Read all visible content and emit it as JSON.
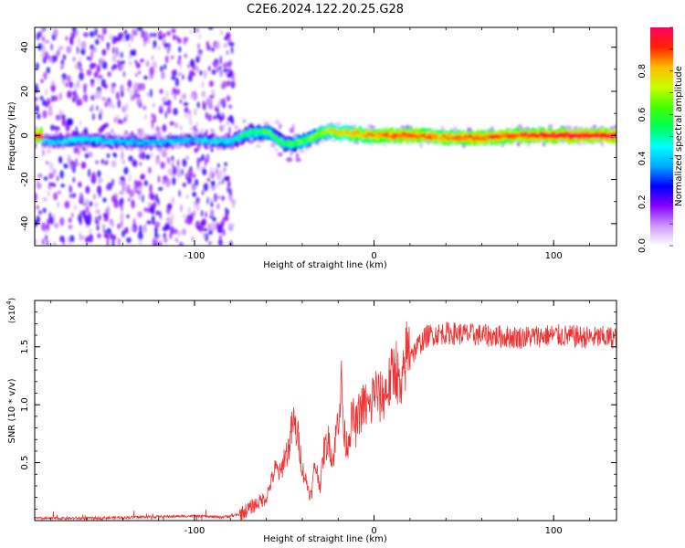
{
  "title": "C2E6.2024.122.20.25.G28",
  "chart_data": [
    {
      "type": "heatmap",
      "xlabel": "Height of straight line (km)",
      "ylabel": "Frequency (Hz)",
      "xlim": [
        -189,
        135
      ],
      "ylim": [
        -50,
        49
      ],
      "x_ticks": [
        -100,
        0,
        100
      ],
      "y_ticks": [
        -40,
        -20,
        0,
        20,
        40
      ],
      "colorbar": {
        "label": "Normalized spectral amplitude",
        "range": [
          0,
          1
        ],
        "ticks": [
          0.0,
          0.2,
          0.4,
          0.6,
          0.8
        ],
        "colors": [
          "#ffffff",
          "#cc99ff",
          "#8800ff",
          "#0000ff",
          "#00aaff",
          "#00ffff",
          "#00ff55",
          "#44ff00",
          "#ccff00",
          "#ffbb00",
          "#ff2200",
          "#ff0066"
        ]
      },
      "ridge": {
        "x": [
          -185,
          -160,
          -140,
          -120,
          -100,
          -80,
          -70,
          -60,
          -50,
          -45,
          -35,
          -25,
          -15,
          0,
          20,
          40,
          60,
          80,
          100,
          120,
          135
        ],
        "y": [
          -3,
          -2,
          -3,
          -3,
          -2,
          -3,
          1,
          2,
          -4,
          -4,
          -1,
          2,
          1,
          0,
          0,
          -1,
          -1,
          0,
          0,
          0,
          0
        ],
        "amplitude": [
          0.35,
          0.4,
          0.35,
          0.35,
          0.35,
          0.4,
          0.5,
          0.55,
          0.5,
          0.55,
          0.6,
          0.7,
          0.75,
          0.8,
          0.85,
          0.8,
          0.85,
          0.85,
          0.9,
          0.9,
          0.9
        ]
      }
    },
    {
      "type": "line",
      "xlabel": "Height of straight line (km)",
      "ylabel": "SNR (10 * v/v)",
      "y_multiplier": "(x10",
      "y_multiplier_exp": "4",
      "y_multiplier_close": ")",
      "xlim": [
        -189,
        135
      ],
      "ylim": [
        0,
        1.9
      ],
      "x_ticks": [
        -100,
        0,
        100
      ],
      "y_ticks": [
        0.5,
        1.0,
        1.5
      ],
      "y_tick_labels": [
        "0.5",
        "1.0",
        "1.5"
      ],
      "series": [
        {
          "color": "#ee3333",
          "x": [
            -189,
            -160,
            -130,
            -100,
            -85,
            -75,
            -70,
            -65,
            -60,
            -57,
            -55,
            -52,
            -50,
            -48,
            -45,
            -42,
            -40,
            -38,
            -35,
            -33,
            -30,
            -28,
            -25,
            -23,
            -20,
            -18,
            -17,
            -15,
            -12,
            -10,
            -8,
            -5,
            -2,
            0,
            3,
            6,
            9,
            12,
            15,
            18,
            20,
            22,
            25,
            30,
            40,
            60,
            80,
            100,
            120,
            135
          ],
          "y": [
            0.02,
            0.02,
            0.03,
            0.04,
            0.03,
            0.05,
            0.1,
            0.15,
            0.2,
            0.35,
            0.45,
            0.4,
            0.55,
            0.6,
            0.85,
            0.7,
            0.45,
            0.35,
            0.2,
            0.5,
            0.3,
            0.6,
            0.7,
            0.5,
            0.9,
            1.2,
            0.75,
            0.65,
            0.9,
            0.8,
            0.95,
            1.0,
            0.95,
            1.15,
            1.05,
            1.1,
            1.2,
            1.35,
            1.05,
            1.45,
            1.5,
            1.45,
            1.52,
            1.6,
            1.62,
            1.6,
            1.58,
            1.6,
            1.58,
            1.58
          ]
        }
      ]
    }
  ]
}
